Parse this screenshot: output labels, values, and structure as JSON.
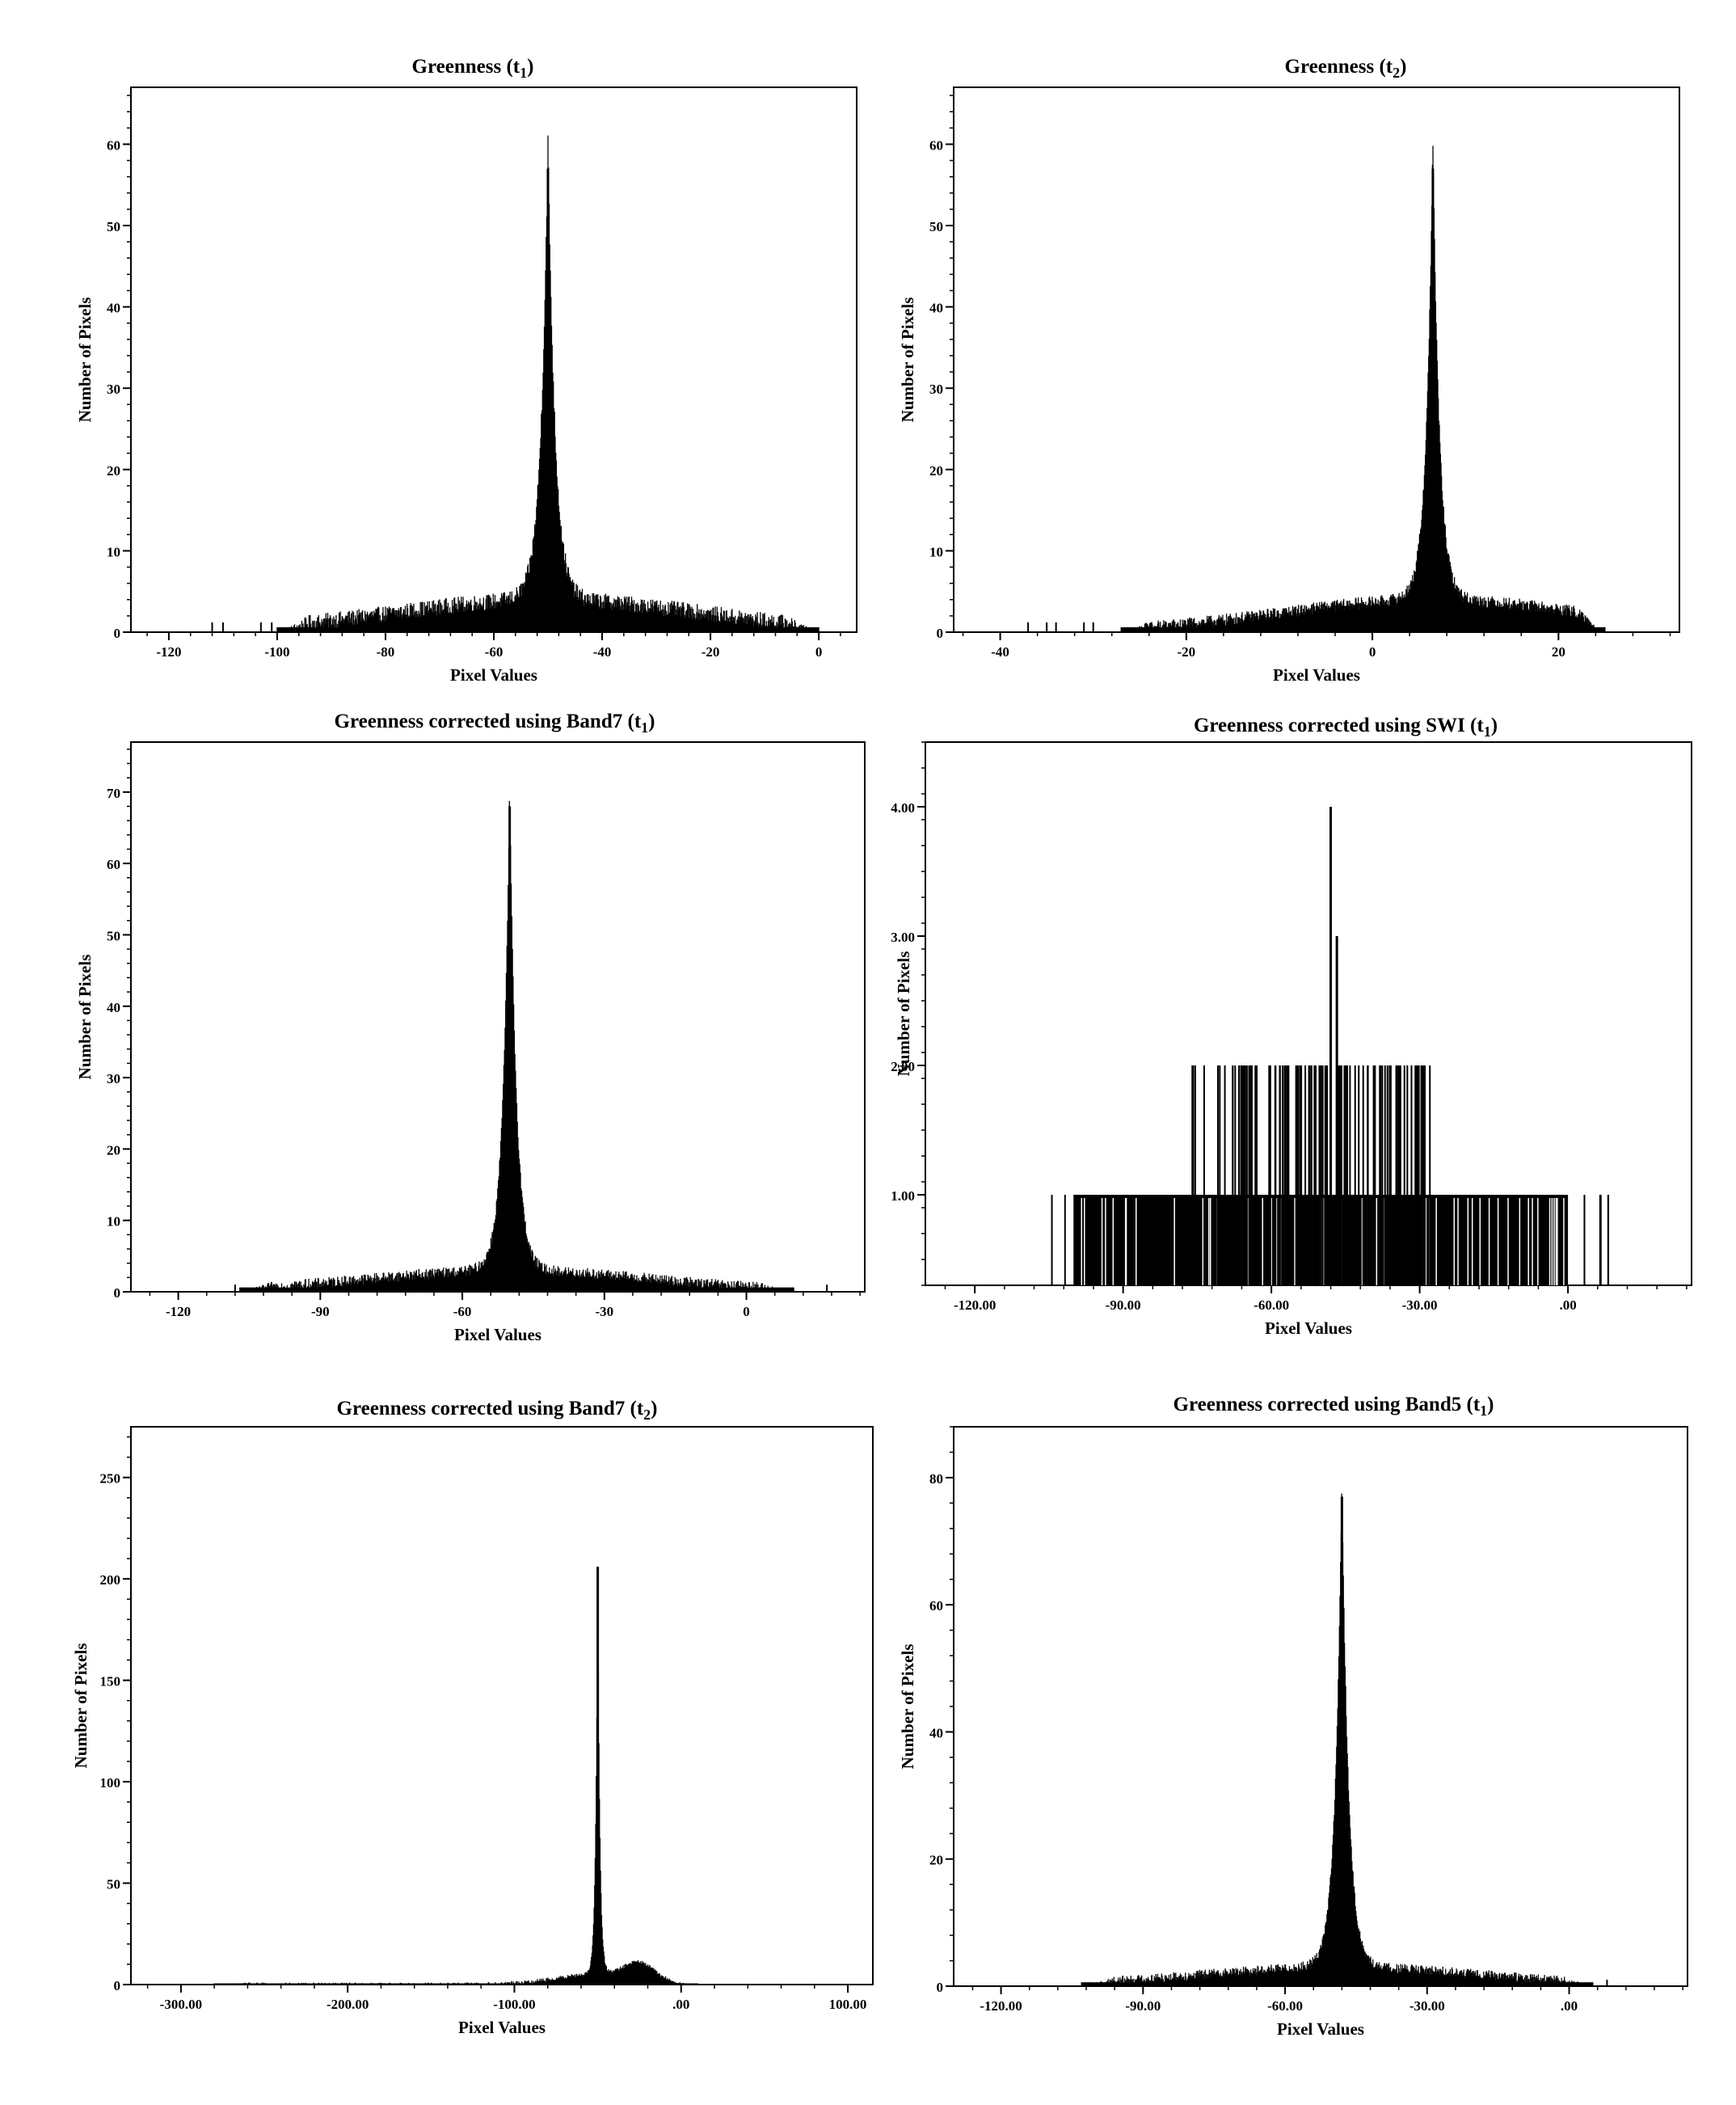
{
  "chart_data": [
    {
      "type": "bar",
      "title_main": "Greenness (",
      "title_sub": "1",
      "xlabel": "Pixel Values",
      "ylabel": "Number of Pixels",
      "xlim": [
        -127,
        7
      ],
      "ylim": [
        0,
        67
      ],
      "xticks": [
        {
          "v": -120,
          "t": "-120"
        },
        {
          "v": -100,
          "t": "-100"
        },
        {
          "v": -80,
          "t": "-80"
        },
        {
          "v": -60,
          "t": "-60"
        },
        {
          "v": -40,
          "t": "-40"
        },
        {
          "v": -20,
          "t": "-20"
        },
        {
          "v": 0,
          "t": "0"
        }
      ],
      "yticks": [
        {
          "v": 0,
          "t": "0"
        },
        {
          "v": 10,
          "t": "10"
        },
        {
          "v": 20,
          "t": "20"
        },
        {
          "v": 30,
          "t": "30"
        },
        {
          "v": 40,
          "t": "40"
        },
        {
          "v": 50,
          "t": "50"
        },
        {
          "v": 60,
          "t": "60"
        }
      ],
      "range": [
        -100,
        0
      ],
      "peak_x": -50,
      "peak_y": 57,
      "peak_width": 1.3,
      "background_level": 4,
      "noise": 2,
      "spread": 28,
      "outliers": [
        -112,
        -110,
        -103,
        -101
      ]
    },
    {
      "type": "bar",
      "title_main": "Greenness (",
      "title_sub": "2",
      "xlabel": "Pixel Values",
      "ylabel": "Number of Pixels",
      "xlim": [
        -45,
        33
      ],
      "ylim": [
        0,
        67
      ],
      "xticks": [
        {
          "v": -40,
          "t": "-40"
        },
        {
          "v": -20,
          "t": "-20"
        },
        {
          "v": 0,
          "t": "0"
        },
        {
          "v": 20,
          "t": "20"
        }
      ],
      "yticks": [
        {
          "v": 0,
          "t": "0"
        },
        {
          "v": 10,
          "t": "10"
        },
        {
          "v": 20,
          "t": "20"
        },
        {
          "v": 30,
          "t": "30"
        },
        {
          "v": 40,
          "t": "40"
        },
        {
          "v": 50,
          "t": "50"
        },
        {
          "v": 60,
          "t": "60"
        }
      ],
      "range": [
        -27,
        25
      ],
      "peak_x": 6.5,
      "peak_y": 57,
      "peak_width": 0.7,
      "background_level": 4,
      "noise": 1.5,
      "spread": 16,
      "outliers": [
        -37,
        -35,
        -34,
        -31,
        -30
      ]
    },
    {
      "type": "bar",
      "title_main": "Greenness corrected using Band7 (",
      "title_sub": "1",
      "xlabel": "Pixel Values",
      "ylabel": "Number of Pixels",
      "xlim": [
        -130,
        25
      ],
      "ylim": [
        0,
        77
      ],
      "xticks": [
        {
          "v": -120,
          "t": "-120"
        },
        {
          "v": -90,
          "t": "-90"
        },
        {
          "v": -60,
          "t": "-60"
        },
        {
          "v": -30,
          "t": "-30"
        },
        {
          "v": 0,
          "t": "0"
        }
      ],
      "yticks": [
        {
          "v": 0,
          "t": "0"
        },
        {
          "v": 10,
          "t": "10"
        },
        {
          "v": 20,
          "t": "20"
        },
        {
          "v": 30,
          "t": "30"
        },
        {
          "v": 40,
          "t": "40"
        },
        {
          "v": 50,
          "t": "50"
        },
        {
          "v": 60,
          "t": "60"
        },
        {
          "v": 70,
          "t": "70"
        }
      ],
      "range": [
        -107,
        10
      ],
      "peak_x": -50,
      "peak_y": 68,
      "peak_width": 1.4,
      "background_level": 3,
      "noise": 1.5,
      "spread": 30,
      "outliers": [
        -108,
        17
      ]
    },
    {
      "type": "bar",
      "title_main": "Greenness corrected using SWI (",
      "title_sub": "1",
      "xlabel": "Pixel Values",
      "ylabel": "Number of Pixels",
      "xlim": [
        -130,
        25
      ],
      "ylim": [
        0.3,
        4.5
      ],
      "xticks": [
        {
          "v": -120,
          "t": "-120.00"
        },
        {
          "v": -90,
          "t": "-90.00"
        },
        {
          "v": -60,
          "t": "-60.00"
        },
        {
          "v": -30,
          "t": "-30.00"
        },
        {
          "v": 0,
          "t": ".00"
        }
      ],
      "yticks": [
        {
          "v": 1,
          "t": "1.00"
        },
        {
          "v": 2,
          "t": "2.00"
        },
        {
          "v": 3,
          "t": "3.00"
        },
        {
          "v": 4,
          "t": "4.00"
        }
      ],
      "range": [
        -105,
        8
      ],
      "peak_x": -48,
      "peak_y": 4,
      "discrete": true
    },
    {
      "type": "bar",
      "title_main": "Greenness corrected using Band7 (",
      "title_sub": "2",
      "xlabel": "Pixel Values",
      "ylabel": "Number of Pixels",
      "xlim": [
        -330,
        115
      ],
      "ylim": [
        0,
        275
      ],
      "xticks": [
        {
          "v": -300,
          "t": "-300.00"
        },
        {
          "v": -200,
          "t": "-200.00"
        },
        {
          "v": -100,
          "t": "-100.00"
        },
        {
          "v": 0,
          "t": ".00"
        },
        {
          "v": 100,
          "t": "100.00"
        }
      ],
      "yticks": [
        {
          "v": 0,
          "t": "0"
        },
        {
          "v": 50,
          "t": "50"
        },
        {
          "v": 100,
          "t": "100"
        },
        {
          "v": 150,
          "t": "150"
        },
        {
          "v": 200,
          "t": "200"
        },
        {
          "v": 250,
          "t": "250"
        }
      ],
      "range": [
        -280,
        10
      ],
      "peak_x": -50,
      "peak_y": 206,
      "peak_width": 1.2,
      "background_level": 5,
      "noise": 2,
      "spread": 25,
      "bump_x": -25,
      "bump_y": 8,
      "outliers": []
    },
    {
      "type": "bar",
      "title_main": "Greenness corrected using Band5 (",
      "title_sub": "1",
      "xlabel": "Pixel Values",
      "ylabel": "Number of Pixels",
      "xlim": [
        -130,
        25
      ],
      "ylim": [
        0,
        88
      ],
      "xticks": [
        {
          "v": -120,
          "t": "-120.00"
        },
        {
          "v": -90,
          "t": "-90.00"
        },
        {
          "v": -60,
          "t": "-60.00"
        },
        {
          "v": -30,
          "t": "-30.00"
        },
        {
          "v": 0,
          "t": ".00"
        }
      ],
      "yticks": [
        {
          "v": 0,
          "t": "0"
        },
        {
          "v": 20,
          "t": "20"
        },
        {
          "v": 40,
          "t": "40"
        },
        {
          "v": 60,
          "t": "60"
        },
        {
          "v": 80,
          "t": "80"
        }
      ],
      "range": [
        -103,
        5
      ],
      "peak_x": -48,
      "peak_y": 77,
      "peak_width": 1.4,
      "background_level": 3,
      "noise": 1.5,
      "spread": 30,
      "outliers": [
        8
      ]
    }
  ]
}
